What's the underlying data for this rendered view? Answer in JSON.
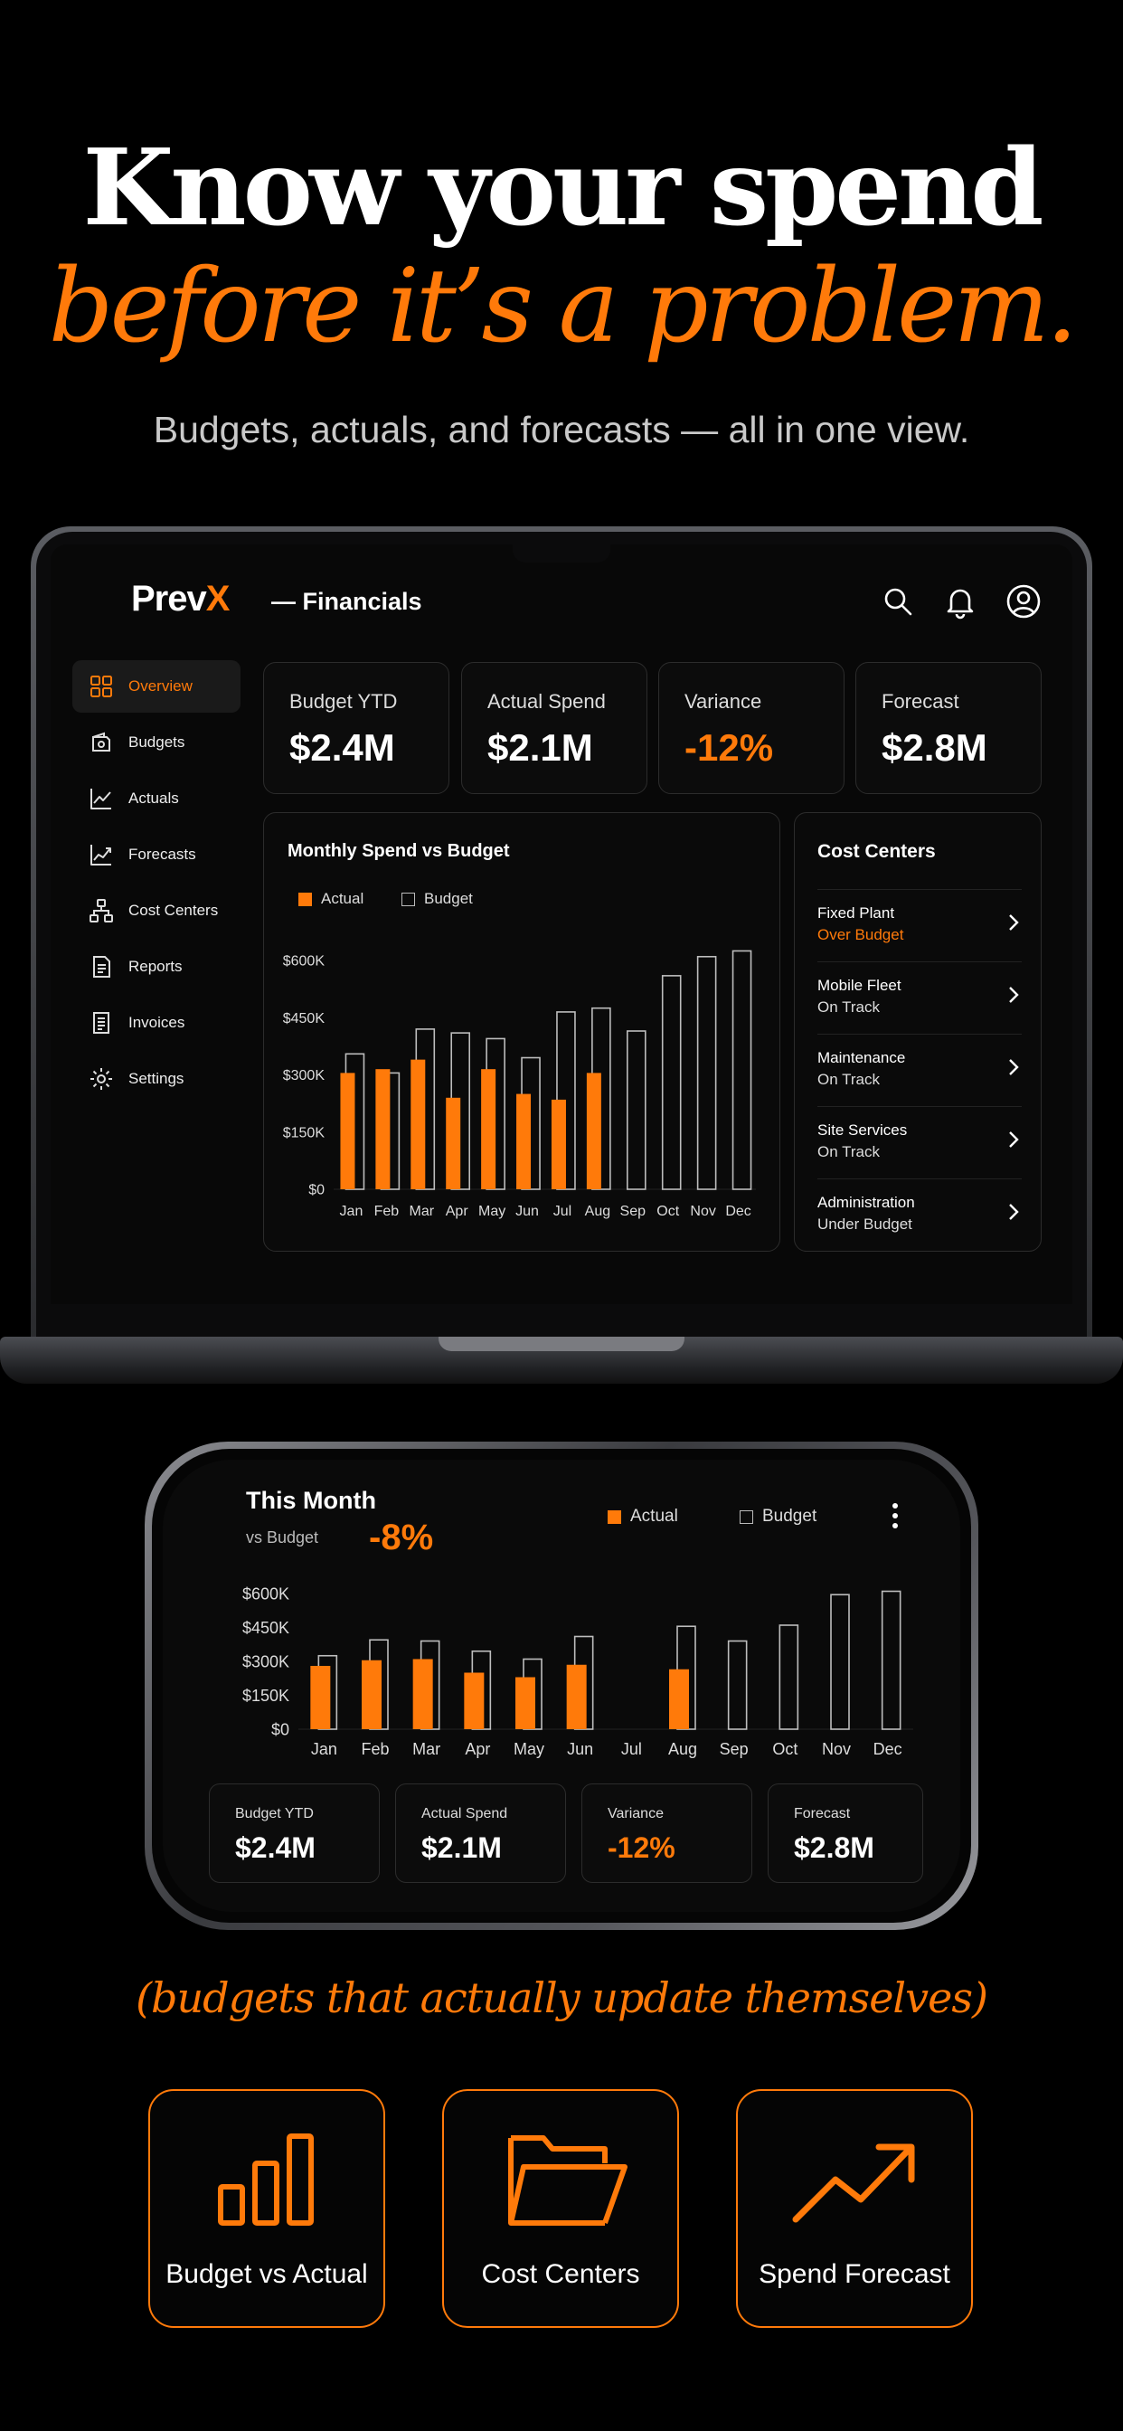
{
  "hero": {
    "line1": "Know your spend",
    "line2": "before it’s a problem.",
    "subtitle": "Budgets, actuals, and forecasts — all in one view."
  },
  "app": {
    "logo_main": "Prev",
    "logo_accent": "X",
    "title": "— Financials",
    "top_icons": [
      "search-icon",
      "bell-icon",
      "user-circle-icon"
    ]
  },
  "sidebar": {
    "items": [
      {
        "label": "Overview",
        "icon": "grid-icon",
        "active": true
      },
      {
        "label": "Budgets",
        "icon": "wallet-icon",
        "active": false
      },
      {
        "label": "Actuals",
        "icon": "line-chart-icon",
        "active": false
      },
      {
        "label": "Forecasts",
        "icon": "trend-icon",
        "active": false
      },
      {
        "label": "Cost Centers",
        "icon": "sitemap-icon",
        "active": false
      },
      {
        "label": "Reports",
        "icon": "report-icon",
        "active": false
      },
      {
        "label": "Invoices",
        "icon": "invoice-icon",
        "active": false
      },
      {
        "label": "Settings",
        "icon": "gear-icon",
        "active": false
      }
    ]
  },
  "kpis": [
    {
      "label": "Budget YTD",
      "value": "$2.4M",
      "accent": false
    },
    {
      "label": "Actual Spend",
      "value": "$2.1M",
      "accent": false
    },
    {
      "label": "Variance",
      "value": "-12%",
      "accent": true
    },
    {
      "label": "Forecast",
      "value": "$2.8M",
      "accent": false
    }
  ],
  "monthly_chart": {
    "title": "Monthly Spend vs Budget",
    "legend_actual": "Actual",
    "legend_budget": "Budget"
  },
  "cost_centers": {
    "title": "Cost Centers",
    "rows": [
      {
        "name": "Fixed Plant",
        "status": "Over Budget",
        "accent": true
      },
      {
        "name": "Mobile Fleet",
        "status": "On Track",
        "accent": false
      },
      {
        "name": "Maintenance",
        "status": "On Track",
        "accent": false
      },
      {
        "name": "Site Services",
        "status": "On Track",
        "accent": false
      },
      {
        "name": "Administration",
        "status": "Under Budget",
        "accent": false
      }
    ]
  },
  "phone": {
    "title": "This Month",
    "subtitle": "vs Budget",
    "variance": "-8%",
    "legend_actual": "Actual",
    "legend_budget": "Budget",
    "kpis": [
      {
        "label": "Budget YTD",
        "value": "$2.4M",
        "accent": false
      },
      {
        "label": "Actual Spend",
        "value": "$2.1M",
        "accent": false
      },
      {
        "label": "Variance",
        "value": "-12%",
        "accent": true
      },
      {
        "label": "Forecast",
        "value": "$2.8M",
        "accent": false
      }
    ]
  },
  "tagline": "(budgets that actually update themselves)",
  "features": [
    {
      "label": "Budget vs Actual",
      "icon": "bar-chart-icon"
    },
    {
      "label": "Cost Centers",
      "icon": "folder-icon"
    },
    {
      "label": "Spend Forecast",
      "icon": "trend-up-icon"
    }
  ],
  "colors": {
    "accent": "#ff7a0a",
    "background": "#000000",
    "panel_border": "#2c2c2c"
  },
  "chart_data": [
    {
      "type": "bar",
      "categories": [
        "Jan",
        "Feb",
        "Mar",
        "Apr",
        "May",
        "Jun",
        "Jul",
        "Aug",
        "Sep",
        "Oct",
        "Nov",
        "Dec"
      ],
      "series": [
        {
          "name": "Actual",
          "values": [
            305,
            315,
            340,
            240,
            315,
            250,
            235,
            305,
            null,
            null,
            null,
            null
          ]
        },
        {
          "name": "Budget",
          "values": [
            355,
            305,
            420,
            410,
            395,
            345,
            465,
            475,
            415,
            560,
            610,
            625
          ]
        }
      ],
      "yticks": [
        "$0",
        "$150K",
        "$300K",
        "$450K",
        "$600K"
      ],
      "ylim": [
        0,
        600
      ]
    },
    {
      "type": "bar",
      "categories": [
        "Jan",
        "Feb",
        "Mar",
        "Apr",
        "May",
        "Jun",
        "Jul",
        "Aug",
        "Sep",
        "Oct",
        "Nov",
        "Dec"
      ],
      "series": [
        {
          "name": "Actual",
          "values": [
            280,
            305,
            310,
            250,
            230,
            285,
            null,
            265,
            null,
            null,
            null,
            null
          ]
        },
        {
          "name": "Budget",
          "values": [
            325,
            395,
            390,
            345,
            310,
            410,
            null,
            455,
            390,
            460,
            595,
            610
          ]
        }
      ],
      "yticks": [
        "$0",
        "$150K",
        "$300K",
        "$450K",
        "$600K"
      ],
      "ylim": [
        0,
        600
      ]
    }
  ]
}
